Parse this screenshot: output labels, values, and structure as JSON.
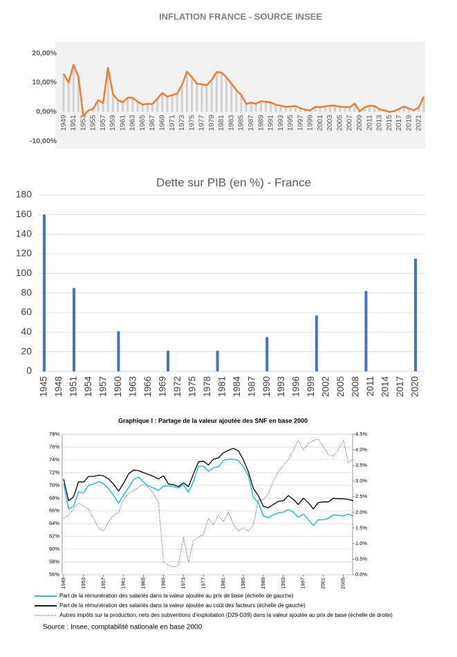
{
  "chart_data": [
    {
      "type": "line",
      "title": "INFLATION FRANCE - SOURCE INSEE",
      "x": [
        1949,
        1950,
        1951,
        1952,
        1953,
        1954,
        1955,
        1956,
        1957,
        1958,
        1959,
        1960,
        1961,
        1962,
        1963,
        1964,
        1965,
        1966,
        1967,
        1968,
        1969,
        1970,
        1971,
        1972,
        1973,
        1974,
        1975,
        1976,
        1977,
        1978,
        1979,
        1980,
        1981,
        1982,
        1983,
        1984,
        1985,
        1986,
        1987,
        1988,
        1989,
        1990,
        1991,
        1992,
        1993,
        1994,
        1995,
        1996,
        1997,
        1998,
        1999,
        2000,
        2001,
        2002,
        2003,
        2004,
        2005,
        2006,
        2007,
        2008,
        2009,
        2010,
        2011,
        2012,
        2013,
        2014,
        2015,
        2016,
        2017,
        2018,
        2019,
        2020,
        2021,
        2022
      ],
      "values": [
        13,
        10,
        16,
        12,
        -1.5,
        0.5,
        1,
        4,
        3,
        15,
        6,
        4,
        3.3,
        4.8,
        4.8,
        3.4,
        2.5,
        2.7,
        2.7,
        4.5,
        6.4,
        5.2,
        5.7,
        6.2,
        9.2,
        13.7,
        11.8,
        9.6,
        9.4,
        9.1,
        10.8,
        13.6,
        13.4,
        11.8,
        9.6,
        7.4,
        5.8,
        2.7,
        3.1,
        2.7,
        3.6,
        3.4,
        3.2,
        2.4,
        2.1,
        1.7,
        1.8,
        2,
        1.2,
        0.7,
        0.5,
        1.7,
        1.6,
        1.9,
        2.1,
        2.1,
        1.7,
        1.7,
        1.5,
        2.8,
        0.1,
        1.5,
        2.1,
        2,
        0.9,
        0.5,
        0,
        0.2,
        1,
        1.8,
        1.1,
        0.5,
        1.6,
        5.2
      ],
      "color": "#ed7d31",
      "xlim": [
        1949,
        2022
      ],
      "xticks": [
        1949,
        1951,
        1953,
        1955,
        1957,
        1959,
        1961,
        1963,
        1965,
        1967,
        1969,
        1971,
        1973,
        1975,
        1977,
        1979,
        1981,
        1983,
        1985,
        1987,
        1989,
        1991,
        1993,
        1995,
        1997,
        1999,
        2001,
        2003,
        2005,
        2007,
        2009,
        2011,
        2013,
        2015,
        2017,
        2019,
        2021
      ],
      "ylim": [
        -10,
        20
      ],
      "yticks": [
        {
          "value": -10,
          "label": "-10,00%"
        },
        {
          "value": 0,
          "label": "0,00%"
        },
        {
          "value": 10,
          "label": "10,00%"
        },
        {
          "value": 20,
          "label": "20,00%"
        }
      ],
      "grid": false
    },
    {
      "type": "bar",
      "title": "Dette sur PIB (en %) - France",
      "x": [
        1945,
        1951,
        1960,
        1970,
        1980,
        1990,
        2000,
        2010,
        2020
      ],
      "values": [
        160,
        85,
        41,
        21,
        21,
        35,
        57,
        82,
        115
      ],
      "color": "#4472c4",
      "xlim": [
        1945,
        2020
      ],
      "xticks": [
        1945,
        1948,
        1951,
        1954,
        1957,
        1960,
        1963,
        1966,
        1969,
        1972,
        1975,
        1978,
        1981,
        1984,
        1987,
        1990,
        1993,
        1996,
        1999,
        2002,
        2005,
        2008,
        2011,
        2014,
        2017,
        2020
      ],
      "ylim": [
        0,
        180
      ],
      "yticks": [
        0,
        20,
        40,
        60,
        80,
        100,
        120,
        140,
        160,
        180
      ],
      "grid": true
    },
    {
      "type": "line",
      "title": "Graphique I : Partage de la valeur ajoutée des SNF en base 2000",
      "x": [
        1949,
        1950,
        1951,
        1952,
        1953,
        1954,
        1955,
        1956,
        1957,
        1958,
        1959,
        1960,
        1961,
        1962,
        1963,
        1964,
        1965,
        1966,
        1967,
        1968,
        1969,
        1970,
        1971,
        1972,
        1973,
        1974,
        1975,
        1976,
        1977,
        1978,
        1979,
        1980,
        1981,
        1982,
        1983,
        1984,
        1985,
        1986,
        1987,
        1988,
        1989,
        1990,
        1991,
        1992,
        1993,
        1994,
        1995,
        1996,
        1997,
        1998,
        1999,
        2000,
        2001,
        2002,
        2003,
        2004,
        2005,
        2006,
        2007
      ],
      "series": [
        {
          "name": "Part de la rémunération des salariés dans la valeur ajoutée au prix de base (échelle de gauche)",
          "color": "#00b7e6",
          "values": [
            70.3,
            66.3,
            66.7,
            69,
            68.8,
            70,
            70.2,
            70.6,
            70.3,
            69.5,
            68.4,
            67.2,
            68.5,
            69.6,
            70.9,
            71.3,
            70.5,
            69.9,
            69.6,
            69.2,
            69.9,
            69.9,
            69.8,
            69.6,
            70.1,
            68.9,
            70.6,
            73,
            73,
            72.2,
            72.8,
            72.9,
            73.9,
            74.1,
            74.1,
            73.9,
            72.9,
            71.5,
            68.1,
            67.3,
            65.2,
            64.9,
            65.4,
            65.7,
            65.8,
            66.2,
            65.8,
            65,
            65.5,
            64.6,
            63.7,
            64.6,
            64.6,
            64.8,
            65.4,
            65.3,
            65.2,
            65.5,
            65.2
          ]
        },
        {
          "name": "Part de la rémunération des salariés dans la valeur ajoutée au coût des facteurs (échelle de gauche)",
          "color": "#000000",
          "values": [
            71,
            67.6,
            68.2,
            70.6,
            70.5,
            71.4,
            71.4,
            71.6,
            71.5,
            71,
            70.2,
            69.1,
            70.3,
            71.8,
            72.4,
            72.3,
            72,
            71.7,
            71.4,
            71,
            71.5,
            70.2,
            70.1,
            69.8,
            70.4,
            69.8,
            71.8,
            73.7,
            73.8,
            73.2,
            74.1,
            74.3,
            75.1,
            75.5,
            75.8,
            75.4,
            74,
            72.1,
            69.5,
            68.4,
            66.7,
            66.5,
            67,
            67.5,
            67.6,
            68.4,
            67.8,
            67,
            68,
            67.3,
            66.3,
            67.3,
            67.4,
            67.4,
            68,
            67.9,
            67.9,
            67.8,
            67.6
          ]
        },
        {
          "name": "Autres impôts sur la production, nets des subventions d'exploitation (D29-D39) dans la valeur ajoutée au prix de base (échelle de droite)",
          "color": "#333333",
          "style": "dotted",
          "axis": "y2",
          "values": [
            1.8,
            1.9,
            2.1,
            2.3,
            2.2,
            2.1,
            1.8,
            1.5,
            1.4,
            1.7,
            1.9,
            2,
            2.4,
            2.6,
            2.7,
            2.8,
            2.9,
            2.8,
            2.6,
            2.3,
            0.4,
            0.3,
            0.25,
            0.3,
            1.2,
            0.4,
            1.1,
            1.2,
            1.3,
            1.8,
            1.6,
            1.9,
            1.7,
            2,
            1.6,
            1.4,
            1.5,
            1.4,
            1.6,
            2.4,
            2.4,
            2.6,
            3,
            3.3,
            3.5,
            3.7,
            4,
            4.3,
            4,
            4.2,
            4.3,
            4.35,
            4.1,
            3.85,
            3.8,
            4,
            4.3,
            3.6,
            3.7
          ]
        }
      ],
      "xlim": [
        1949,
        2007
      ],
      "xticks": [
        1949,
        1953,
        1957,
        1961,
        1965,
        1969,
        1973,
        1977,
        1981,
        1985,
        1989,
        1993,
        1997,
        2001,
        2005
      ],
      "ylim": [
        56,
        78
      ],
      "yticks": [
        {
          "value": 56,
          "label": "56%"
        },
        {
          "value": 58,
          "label": "58%"
        },
        {
          "value": 60,
          "label": "60%"
        },
        {
          "value": 62,
          "label": "62%"
        },
        {
          "value": 64,
          "label": "64%"
        },
        {
          "value": 66,
          "label": "66%"
        },
        {
          "value": 68,
          "label": "68%"
        },
        {
          "value": 70,
          "label": "70%"
        },
        {
          "value": 72,
          "label": "72%"
        },
        {
          "value": 74,
          "label": "74%"
        },
        {
          "value": 76,
          "label": "76%"
        },
        {
          "value": 78,
          "label": "78%"
        }
      ],
      "y2lim": [
        0,
        4.5
      ],
      "y2ticks": [
        {
          "value": 0,
          "label": "0.0%"
        },
        {
          "value": 0.5,
          "label": "0.5%"
        },
        {
          "value": 1,
          "label": "1.0%"
        },
        {
          "value": 1.5,
          "label": "1.5%"
        },
        {
          "value": 2,
          "label": "2.0%"
        },
        {
          "value": 2.5,
          "label": "2.5%"
        },
        {
          "value": 3,
          "label": "3.0%"
        },
        {
          "value": 3.5,
          "label": "3.5%"
        },
        {
          "value": 4,
          "label": "4.0%"
        },
        {
          "value": 4.5,
          "label": "4.5%"
        }
      ],
      "grid": true,
      "source": "Source : Insee, comptabilité nationale en base 2000"
    }
  ]
}
